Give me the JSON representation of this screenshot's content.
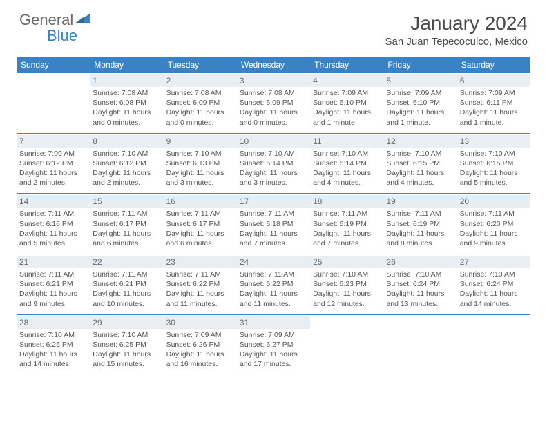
{
  "brand": {
    "name1": "General",
    "name2": "Blue"
  },
  "colors": {
    "accent": "#3a82c4",
    "text": "#555555",
    "heading": "#4a4a4a",
    "day_bg": "#e9eef3",
    "background": "#ffffff"
  },
  "title": "January 2024",
  "location": "San Juan Tepecoculco, Mexico",
  "days_of_week": [
    "Sunday",
    "Monday",
    "Tuesday",
    "Wednesday",
    "Thursday",
    "Friday",
    "Saturday"
  ],
  "typography": {
    "title_fontsize": 28,
    "location_fontsize": 15,
    "dow_fontsize": 12,
    "daynum_fontsize": 12,
    "detail_fontsize": 10.5
  },
  "weeks": [
    [
      {
        "n": "",
        "sr": "",
        "ss": "",
        "dl": ""
      },
      {
        "n": "1",
        "sr": "Sunrise: 7:08 AM",
        "ss": "Sunset: 6:08 PM",
        "dl": "Daylight: 11 hours and 0 minutes."
      },
      {
        "n": "2",
        "sr": "Sunrise: 7:08 AM",
        "ss": "Sunset: 6:09 PM",
        "dl": "Daylight: 11 hours and 0 minutes."
      },
      {
        "n": "3",
        "sr": "Sunrise: 7:08 AM",
        "ss": "Sunset: 6:09 PM",
        "dl": "Daylight: 11 hours and 0 minutes."
      },
      {
        "n": "4",
        "sr": "Sunrise: 7:09 AM",
        "ss": "Sunset: 6:10 PM",
        "dl": "Daylight: 11 hours and 1 minute."
      },
      {
        "n": "5",
        "sr": "Sunrise: 7:09 AM",
        "ss": "Sunset: 6:10 PM",
        "dl": "Daylight: 11 hours and 1 minute."
      },
      {
        "n": "6",
        "sr": "Sunrise: 7:09 AM",
        "ss": "Sunset: 6:11 PM",
        "dl": "Daylight: 11 hours and 1 minute."
      }
    ],
    [
      {
        "n": "7",
        "sr": "Sunrise: 7:09 AM",
        "ss": "Sunset: 6:12 PM",
        "dl": "Daylight: 11 hours and 2 minutes."
      },
      {
        "n": "8",
        "sr": "Sunrise: 7:10 AM",
        "ss": "Sunset: 6:12 PM",
        "dl": "Daylight: 11 hours and 2 minutes."
      },
      {
        "n": "9",
        "sr": "Sunrise: 7:10 AM",
        "ss": "Sunset: 6:13 PM",
        "dl": "Daylight: 11 hours and 3 minutes."
      },
      {
        "n": "10",
        "sr": "Sunrise: 7:10 AM",
        "ss": "Sunset: 6:14 PM",
        "dl": "Daylight: 11 hours and 3 minutes."
      },
      {
        "n": "11",
        "sr": "Sunrise: 7:10 AM",
        "ss": "Sunset: 6:14 PM",
        "dl": "Daylight: 11 hours and 4 minutes."
      },
      {
        "n": "12",
        "sr": "Sunrise: 7:10 AM",
        "ss": "Sunset: 6:15 PM",
        "dl": "Daylight: 11 hours and 4 minutes."
      },
      {
        "n": "13",
        "sr": "Sunrise: 7:10 AM",
        "ss": "Sunset: 6:15 PM",
        "dl": "Daylight: 11 hours and 5 minutes."
      }
    ],
    [
      {
        "n": "14",
        "sr": "Sunrise: 7:11 AM",
        "ss": "Sunset: 6:16 PM",
        "dl": "Daylight: 11 hours and 5 minutes."
      },
      {
        "n": "15",
        "sr": "Sunrise: 7:11 AM",
        "ss": "Sunset: 6:17 PM",
        "dl": "Daylight: 11 hours and 6 minutes."
      },
      {
        "n": "16",
        "sr": "Sunrise: 7:11 AM",
        "ss": "Sunset: 6:17 PM",
        "dl": "Daylight: 11 hours and 6 minutes."
      },
      {
        "n": "17",
        "sr": "Sunrise: 7:11 AM",
        "ss": "Sunset: 6:18 PM",
        "dl": "Daylight: 11 hours and 7 minutes."
      },
      {
        "n": "18",
        "sr": "Sunrise: 7:11 AM",
        "ss": "Sunset: 6:19 PM",
        "dl": "Daylight: 11 hours and 7 minutes."
      },
      {
        "n": "19",
        "sr": "Sunrise: 7:11 AM",
        "ss": "Sunset: 6:19 PM",
        "dl": "Daylight: 11 hours and 8 minutes."
      },
      {
        "n": "20",
        "sr": "Sunrise: 7:11 AM",
        "ss": "Sunset: 6:20 PM",
        "dl": "Daylight: 11 hours and 9 minutes."
      }
    ],
    [
      {
        "n": "21",
        "sr": "Sunrise: 7:11 AM",
        "ss": "Sunset: 6:21 PM",
        "dl": "Daylight: 11 hours and 9 minutes."
      },
      {
        "n": "22",
        "sr": "Sunrise: 7:11 AM",
        "ss": "Sunset: 6:21 PM",
        "dl": "Daylight: 11 hours and 10 minutes."
      },
      {
        "n": "23",
        "sr": "Sunrise: 7:11 AM",
        "ss": "Sunset: 6:22 PM",
        "dl": "Daylight: 11 hours and 11 minutes."
      },
      {
        "n": "24",
        "sr": "Sunrise: 7:11 AM",
        "ss": "Sunset: 6:22 PM",
        "dl": "Daylight: 11 hours and 11 minutes."
      },
      {
        "n": "25",
        "sr": "Sunrise: 7:10 AM",
        "ss": "Sunset: 6:23 PM",
        "dl": "Daylight: 11 hours and 12 minutes."
      },
      {
        "n": "26",
        "sr": "Sunrise: 7:10 AM",
        "ss": "Sunset: 6:24 PM",
        "dl": "Daylight: 11 hours and 13 minutes."
      },
      {
        "n": "27",
        "sr": "Sunrise: 7:10 AM",
        "ss": "Sunset: 6:24 PM",
        "dl": "Daylight: 11 hours and 14 minutes."
      }
    ],
    [
      {
        "n": "28",
        "sr": "Sunrise: 7:10 AM",
        "ss": "Sunset: 6:25 PM",
        "dl": "Daylight: 11 hours and 14 minutes."
      },
      {
        "n": "29",
        "sr": "Sunrise: 7:10 AM",
        "ss": "Sunset: 6:25 PM",
        "dl": "Daylight: 11 hours and 15 minutes."
      },
      {
        "n": "30",
        "sr": "Sunrise: 7:09 AM",
        "ss": "Sunset: 6:26 PM",
        "dl": "Daylight: 11 hours and 16 minutes."
      },
      {
        "n": "31",
        "sr": "Sunrise: 7:09 AM",
        "ss": "Sunset: 6:27 PM",
        "dl": "Daylight: 11 hours and 17 minutes."
      },
      {
        "n": "",
        "sr": "",
        "ss": "",
        "dl": ""
      },
      {
        "n": "",
        "sr": "",
        "ss": "",
        "dl": ""
      },
      {
        "n": "",
        "sr": "",
        "ss": "",
        "dl": ""
      }
    ]
  ]
}
